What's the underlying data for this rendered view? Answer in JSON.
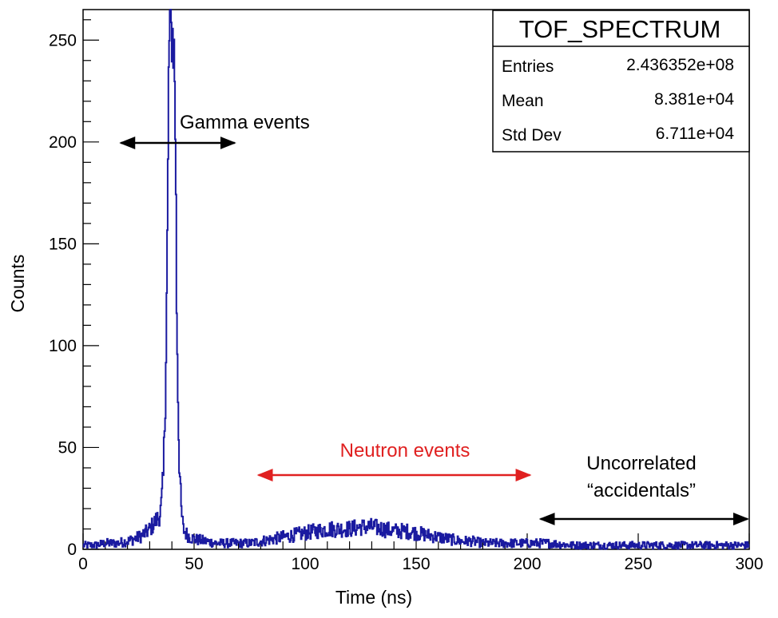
{
  "chart_data": {
    "type": "line",
    "title": "",
    "xlabel": "Time (ns)",
    "ylabel": "Counts",
    "xlim": [
      0,
      300
    ],
    "ylim": [
      0,
      265
    ],
    "x_ticks": [
      0,
      50,
      100,
      150,
      200,
      250,
      300
    ],
    "y_ticks": [
      0,
      50,
      100,
      150,
      200,
      250
    ],
    "grid": false,
    "line_color": "#1a1aa0",
    "series": [
      {
        "name": "TOF_SPECTRUM",
        "x": [
          0,
          5,
          10,
          15,
          20,
          25,
          28,
          30,
          32,
          34,
          35,
          36,
          37,
          38,
          38.5,
          39,
          39.5,
          40,
          40.5,
          41,
          41.5,
          42,
          43,
          44,
          45,
          46,
          47,
          48,
          50,
          55,
          60,
          65,
          70,
          75,
          80,
          85,
          90,
          95,
          100,
          105,
          110,
          115,
          120,
          125,
          130,
          135,
          140,
          145,
          150,
          155,
          160,
          165,
          170,
          175,
          180,
          185,
          190,
          195,
          200,
          210,
          220,
          230,
          240,
          250,
          260,
          270,
          280,
          290,
          300
        ],
        "values": [
          2,
          2,
          3,
          3,
          4,
          6,
          8,
          10,
          13,
          16,
          20,
          35,
          80,
          170,
          245,
          258,
          250,
          256,
          248,
          240,
          200,
          120,
          50,
          20,
          10,
          8,
          7,
          6,
          5,
          4,
          3,
          3,
          3,
          3,
          4,
          5,
          6,
          7,
          8,
          9,
          10,
          10,
          10,
          11,
          11,
          10,
          9,
          9,
          8,
          7,
          6,
          5,
          4,
          4,
          3,
          3,
          3,
          3,
          3,
          3,
          2,
          2,
          2,
          2,
          2,
          2,
          2,
          2,
          2
        ]
      }
    ],
    "annotations": {
      "gamma": {
        "label": "Gamma events",
        "color": "#000000",
        "range": [
          17,
          69
        ]
      },
      "neutron": {
        "label": "Neutron events",
        "color": "#e02020",
        "range": [
          79,
          202
        ]
      },
      "accidentals": {
        "line1": "Uncorrelated",
        "line2": "“accidentals”",
        "color": "#000000",
        "range": [
          206,
          300
        ]
      }
    },
    "stats_box": {
      "title": "TOF_SPECTRUM",
      "rows": [
        {
          "label": "Entries",
          "value": "2.436352e+08"
        },
        {
          "label": "Mean",
          "value": "8.381e+04"
        },
        {
          "label": "Std Dev",
          "value": "6.711e+04"
        }
      ]
    }
  }
}
